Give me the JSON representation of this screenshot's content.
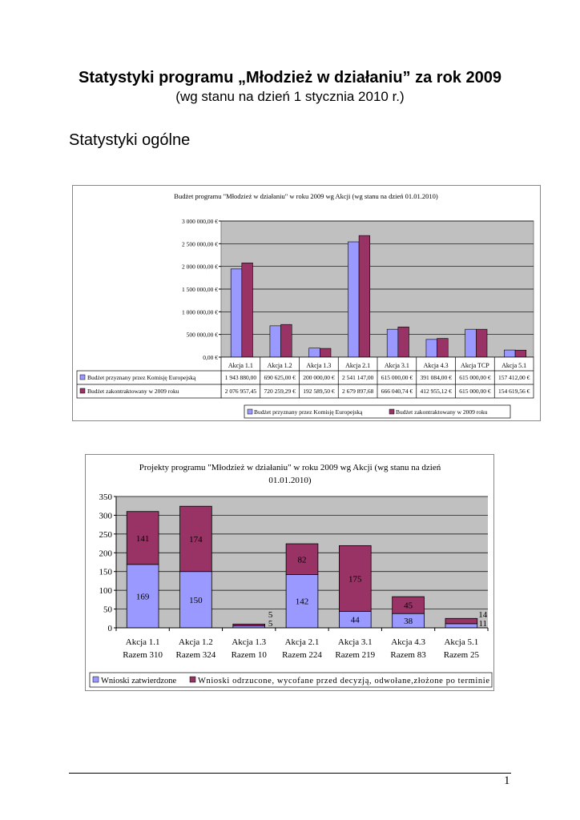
{
  "header": {
    "title": "Statystyki programu „Młodzież w działaniu” za rok 2009",
    "subtitle": "(wg stanu na dzień 1 stycznia 2010 r.)"
  },
  "section_title": "Statystyki ogólne",
  "page_number": "1",
  "colors": {
    "series1": "#9999ff",
    "series2": "#993366",
    "plot_bg": "#c0c0c0"
  },
  "chart_data": [
    {
      "type": "bar",
      "title": "Budżet programu \"Młodzież w działaniu\" w roku 2009 wg Akcji (wg stanu na dzień 01.01.2010)",
      "categories": [
        "Akcja 1.1",
        "Akcja 1.2",
        "Akcja 1.3",
        "Akcja 2.1",
        "Akcja 3.1",
        "Akcja 4.3",
        "Akcja TCP",
        "Akcja 5.1"
      ],
      "yticks": [
        "0,00 €",
        "500 000,00 €",
        "1 000 000,00 €",
        "1 500 000,00 €",
        "2 000 000,00 €",
        "2 500 000,00 €",
        "3 000 000,00 €"
      ],
      "ylim": [
        0,
        3000000
      ],
      "grid": true,
      "legend_placement": "bottom",
      "series": [
        {
          "name": "Budżet przyznany przez Komisję Europejską",
          "values": [
            1943880,
            690625,
            200000,
            2541147,
            615000,
            391084,
            615000,
            157412
          ],
          "table": [
            "1 943 880,00",
            "690 625,00 €",
            "200 000,00 €",
            "2 541 147,00",
            "615 000,00 €",
            "391 084,00 €",
            "615 000,00 €",
            "157 412,00 €"
          ]
        },
        {
          "name": "Budżet zakontraktowany w 2009 roku",
          "values": [
            2076957.45,
            720259.29,
            192589.5,
            2679897.68,
            666040.74,
            412955.12,
            615000,
            154619.56
          ],
          "table": [
            "2 076 957,45",
            "720 259,29 €",
            "192 589,50 €",
            "2 679 897,68",
            "666 040,74 €",
            "412 955,12 €",
            "615 000,00 €",
            "154 619,56 €"
          ]
        }
      ]
    },
    {
      "type": "bar",
      "stacked": true,
      "title": [
        "Projekty programu \"Młodzież w działaniu\" w roku 2009 wg Akcji (wg stanu na dzień",
        "01.01.2010)"
      ],
      "categories": [
        [
          "Akcja 1.1",
          "Razem 310"
        ],
        [
          "Akcja 1.2",
          "Razem 324"
        ],
        [
          "Akcja 1.3",
          "Razem 10"
        ],
        [
          "Akcja 2.1",
          "Razem 224"
        ],
        [
          "Akcja 3.1",
          "Razem 219"
        ],
        [
          "Akcja 4.3",
          "Razem 83"
        ],
        [
          "Akcja 5.1",
          "Razem 25"
        ]
      ],
      "yticks": [
        "0",
        "50",
        "100",
        "150",
        "200",
        "250",
        "300",
        "350"
      ],
      "ylim": [
        0,
        350
      ],
      "grid": true,
      "legend_placement": "bottom",
      "series": [
        {
          "name": "Wnioski zatwierdzone",
          "values": [
            169,
            150,
            5,
            142,
            44,
            38,
            11
          ]
        },
        {
          "name": "Wnioski odrzucone, wycofane przed decyzją, odwołane,złożone po terminie",
          "values": [
            141,
            174,
            5,
            82,
            175,
            45,
            14
          ]
        }
      ]
    }
  ]
}
